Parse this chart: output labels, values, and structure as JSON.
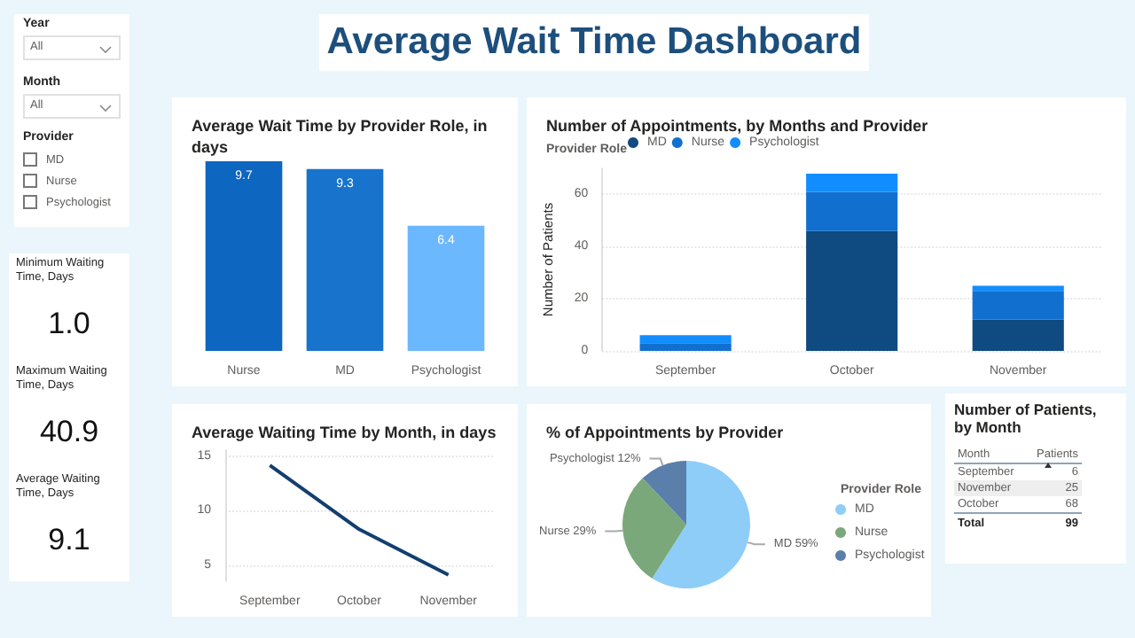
{
  "chart_data": [
    {
      "type": "other",
      "title": "Average Wait Time Dashboard"
    },
    {
      "type": "other",
      "title": "Year",
      "annotations": [
        "All"
      ]
    },
    {
      "type": "other",
      "title": "Month",
      "annotations": [
        "All"
      ]
    },
    {
      "type": "other",
      "title": "Provider",
      "categories": [
        "MD",
        "Nurse",
        "Psychologist"
      ]
    },
    {
      "type": "bar",
      "title": "Average Wait Time by Provider Role, in days",
      "categories": [
        "Nurse",
        "MD",
        "Psychologist"
      ],
      "values": [
        9.7,
        9.3,
        6.4
      ],
      "colors": [
        "#0d66bf",
        "#1873cc",
        "#6cb8ff"
      ],
      "data_labels": true
    },
    {
      "type": "bar",
      "title": "Number of Appointments, by Months and Provider",
      "stacked": true,
      "legend": "top left",
      "legend_title": "Provider Role",
      "ylabel": "Number of Patients",
      "categories": [
        "September",
        "October",
        "November"
      ],
      "ylim": [
        0,
        70
      ],
      "yticks": [
        0,
        20,
        40,
        60
      ],
      "grid": "y",
      "series": [
        {
          "name": "MD",
          "color": "#0f4a80",
          "values": [
            0,
            46,
            12
          ]
        },
        {
          "name": "Nurse",
          "color": "#1170cf",
          "values": [
            3,
            15,
            11
          ]
        },
        {
          "name": "Psychologist",
          "color": "#118dff",
          "values": [
            3,
            7,
            2
          ]
        }
      ]
    },
    {
      "type": "other",
      "title": "Minimum Waiting Time, Days",
      "annotations": [
        "1.0"
      ]
    },
    {
      "type": "other",
      "title": "Maximum Waiting Time, Days",
      "annotations": [
        "40.9"
      ]
    },
    {
      "type": "other",
      "title": "Average Waiting Time, Days",
      "annotations": [
        "9.1"
      ]
    },
    {
      "type": "line",
      "title": "Average Waiting Time by Month, in days",
      "categories": [
        "September",
        "October",
        "November"
      ],
      "values": [
        14.2,
        8.3,
        4.1
      ],
      "color": "#123f6e",
      "ylim": [
        3.5,
        15.6
      ],
      "yticks": [
        5,
        10,
        15
      ],
      "grid": "y",
      "marker": "none"
    },
    {
      "type": "pie",
      "title": "% of Appointments by Provider",
      "categories": [
        "MD",
        "Nurse",
        "Psychologist"
      ],
      "values": [
        59,
        29,
        12
      ],
      "colors": [
        "#8ecdf8",
        "#7aa87a",
        "#5a7fab"
      ],
      "value_labels": [
        "MD 59%",
        "Nurse 29%",
        "Psychologist 12%"
      ],
      "legend": "right",
      "legend_title": "Provider Role"
    },
    {
      "type": "other",
      "title": "Number of Patients, by Month",
      "annotations": [
        "Month",
        "Patients",
        "Total"
      ],
      "categories": [
        "September",
        "November",
        "October"
      ],
      "values": [
        6,
        25,
        68
      ],
      "data_labels": true,
      "totals": [
        "99"
      ]
    }
  ]
}
